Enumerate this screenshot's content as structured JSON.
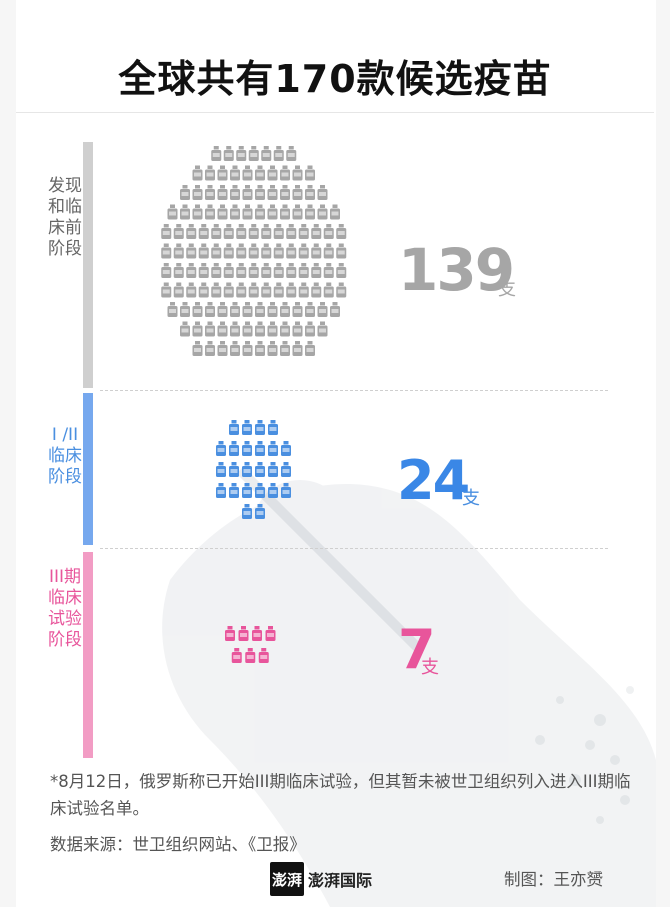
{
  "title": "全球共有170款候选疫苗",
  "chart_data": {
    "type": "pictogram",
    "unit": "支",
    "categories": [
      "发现和临床前阶段",
      "I /II临床阶段",
      "III期临床试验阶段"
    ],
    "values": [
      139,
      24,
      7
    ],
    "colors": [
      "#a6a6a6",
      "#4a8fe0",
      "#e8559b"
    ],
    "bar_colors": [
      "#cfcfcf",
      "#76a8ee",
      "#f29cc4"
    ]
  },
  "rows": [
    {
      "label": "发现和临床前阶段",
      "value": "139",
      "unit": "支"
    },
    {
      "label": "I /II临床阶段",
      "value": "24",
      "unit": "支"
    },
    {
      "label": "III期临床试验阶段",
      "value": "7",
      "unit": "支"
    }
  ],
  "footnote": "*8月12日，俄罗斯称已开始III期临床试验，但其暂未被世卫组织列入进入III期临床试验名单。",
  "source": "数据来源：世卫组织网站、《卫报》",
  "logo": {
    "mark": "澎湃",
    "text": "澎湃国际"
  },
  "credit": "制图：王亦赟"
}
